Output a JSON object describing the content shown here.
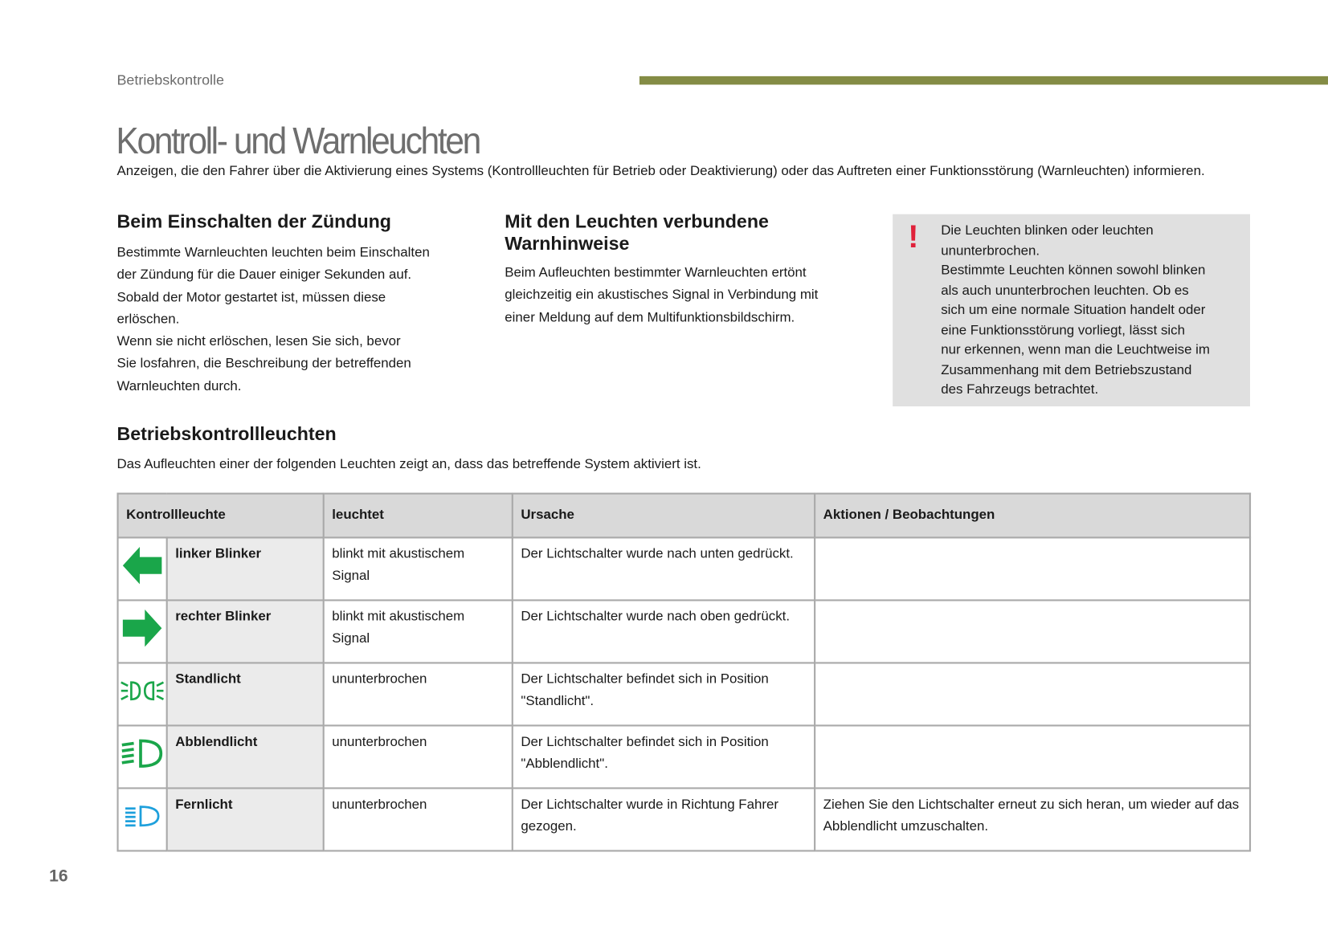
{
  "header": {
    "section": "Betriebskontrolle",
    "band_color": "#848c45"
  },
  "title": "Kontroll- und Warnleuchten",
  "intro": "Anzeigen, die den Fahrer über die Aktivierung eines Systems (Kontrollleuchten für Betrieb oder Deaktivierung) oder das Auftreten einer Funktionsstörung (Warnleuchten) informieren.",
  "col1": {
    "heading": "Beim Einschalten der Zündung",
    "text": "Bestimmte Warnleuchten leuchten beim Einschalten\nder Zündung für die Dauer einiger Sekunden auf.\nSobald der Motor gestartet ist, müssen diese\nerlöschen.\nWenn sie nicht erlöschen, lesen Sie sich, bevor\nSie losfahren, die Beschreibung der betreffenden\nWarnleuchten durch."
  },
  "col2": {
    "heading": "Mit den Leuchten verbundene Warnhinweise",
    "text": "Beim Aufleuchten bestimmter Warnleuchten ertönt\ngleichzeitig ein akustisches Signal in Verbindung mit\neiner Meldung auf dem Multifunktionsbildschirm."
  },
  "note": {
    "icon": "exclamation-icon",
    "icon_color": "#e0213a",
    "text": "Die Leuchten blinken oder leuchten\nununterbrochen.\nBestimmte Leuchten können sowohl blinken\nals auch ununterbrochen leuchten. Ob es\nsich um eine normale Situation handelt oder\neine Funktionsstörung vorliegt, lässt sich\nnur erkennen, wenn man die Leuchtweise im\nZusammenhang mit dem Betriebszustand\ndes Fahrzeugs betrachtet."
  },
  "section2": {
    "heading": "Betriebskontrollleuchten",
    "text": "Das Aufleuchten einer der folgenden Leuchten zeigt an, dass das betreffende System aktiviert ist."
  },
  "table": {
    "headers": [
      "Kontrollleuchte",
      "leuchtet",
      "Ursache",
      "Aktionen / Beobachtungen"
    ],
    "rows": [
      {
        "icon": "left-arrow-icon",
        "icon_color": "#1aa64a",
        "name": "linker Blinker",
        "lights": "blinkt mit akustischem Signal",
        "cause": "Der Lichtschalter wurde nach unten gedrückt.",
        "action": ""
      },
      {
        "icon": "right-arrow-icon",
        "icon_color": "#1aa64a",
        "name": "rechter Blinker",
        "lights": "blinkt mit akustischem Signal",
        "cause": "Der Lichtschalter wurde nach oben gedrückt.",
        "action": ""
      },
      {
        "icon": "sidelights-icon",
        "icon_color": "#1aa64a",
        "name": "Standlicht",
        "lights": "ununterbrochen",
        "cause": "Der Lichtschalter befindet sich in Position \"Standlicht\".",
        "action": ""
      },
      {
        "icon": "dipped-beam-icon",
        "icon_color": "#1aa64a",
        "name": "Abblendlicht",
        "lights": "ununterbrochen",
        "cause": "Der Lichtschalter befindet sich in Position \"Abblendlicht\".",
        "action": ""
      },
      {
        "icon": "main-beam-icon",
        "icon_color": "#1ea0dc",
        "name": "Fernlicht",
        "lights": "ununterbrochen",
        "cause": "Der Lichtschalter wurde in Richtung Fahrer gezogen.",
        "action": "Ziehen Sie den Lichtschalter erneut zu sich heran, um wieder auf das Abblendlicht umzuschalten."
      }
    ]
  },
  "page_number": "16"
}
